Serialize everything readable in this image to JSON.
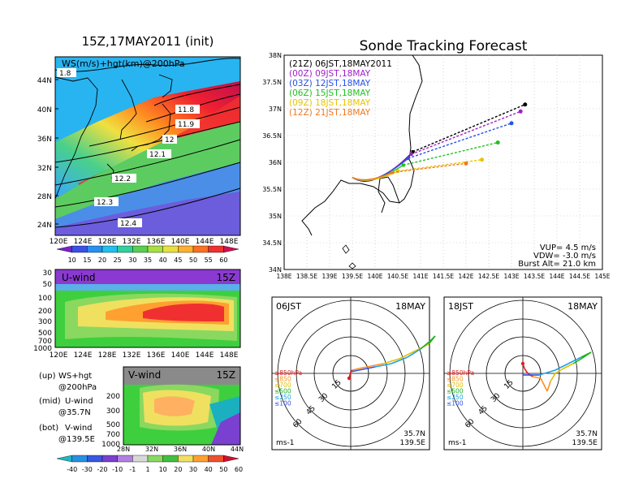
{
  "left": {
    "title": "15Z,17MAY2011 (init)",
    "map_label": "WS(m/s)+hgt(km)@200hPa",
    "lat_ticks": [
      "44N",
      "40N",
      "36N",
      "32N",
      "28N",
      "24N"
    ],
    "lon_ticks": [
      "120E",
      "124E",
      "128E",
      "132E",
      "136E",
      "140E",
      "144E",
      "148E"
    ],
    "contour_labels": [
      "1.8",
      "11.8",
      "11.9",
      "12",
      "12.1",
      "12.2",
      "12.3",
      "12.4"
    ],
    "colorbar_top_ticks": [
      "10",
      "15",
      "20",
      "25",
      "30",
      "35",
      "40",
      "45",
      "50",
      "55",
      "60"
    ],
    "uwind_label": "U-wind",
    "uwind_time": "15Z",
    "pressure_ticks": [
      "30",
      "50",
      "100",
      "200",
      "300",
      "500",
      "700",
      "1000"
    ],
    "vwind_label": "V-wind",
    "vwind_time": "15Z",
    "vwind_pressure_ticks": [
      "200",
      "300",
      "500",
      "700",
      "1000"
    ],
    "lat_axis_ticks": [
      "28N",
      "32N",
      "36N",
      "40N",
      "44N"
    ],
    "legend": [
      {
        "key": "(up)",
        "line1": "WS+hgt",
        "line2": "@200hPa"
      },
      {
        "key": "(mid)",
        "line1": "U-wind",
        "line2": "@35.7N"
      },
      {
        "key": "(bot)",
        "line1": "V-wind",
        "line2": "@139.5E"
      }
    ],
    "colorbar_bottom_ticks": [
      "-40",
      "-30",
      "-20",
      "-10",
      "-1",
      "1",
      "10",
      "20",
      "30",
      "40",
      "50",
      "60"
    ]
  },
  "right": {
    "title": "Sonde Tracking Forecast",
    "traj_lat_ticks": [
      "38N",
      "37.5N",
      "37N",
      "36.5N",
      "36N",
      "35.5N",
      "35N",
      "34.5N",
      "34N"
    ],
    "traj_lon_ticks": [
      "138E",
      "138.5E",
      "139E",
      "139.5E",
      "140E",
      "140.5E",
      "141E",
      "141.5E",
      "142E",
      "142.5E",
      "143E",
      "143.5E",
      "144E",
      "144.5E",
      "145E"
    ],
    "vup": "VUP= 4.5 m/s",
    "vdw": "VDW= -3.0 m/s",
    "burst": "Burst Alt= 21.0 km",
    "hodo_left": {
      "time": "06JST",
      "date": "18MAY",
      "loc1": "35.7N",
      "loc2": "139.5E",
      "unit": "ms-1"
    },
    "hodo_right": {
      "time": "18JST",
      "date": "18MAY",
      "loc1": "35.7N",
      "loc2": "139.5E",
      "unit": "ms-1"
    },
    "ring_labels": [
      "15",
      "30",
      "45",
      "60"
    ],
    "level_labels": [
      "≥850hPa",
      "≤850",
      "≤700",
      "≤500",
      "≤250",
      "≤100"
    ]
  },
  "chart_data": [
    {
      "type": "scatter",
      "title": "Sonde Tracking Forecast",
      "xlim": [
        138.0,
        145.0
      ],
      "ylim": [
        34.0,
        38.0
      ],
      "launch_point": {
        "lon": 139.5,
        "lat": 35.72
      },
      "series": [
        {
          "name": "(21Z) 06JST,18MAY2011",
          "color": "#000000",
          "end": {
            "lon": 143.3,
            "lat": 37.08
          }
        },
        {
          "name": "(00Z) 09JST,18MAY",
          "color": "#a020c8",
          "end": {
            "lon": 143.2,
            "lat": 36.95
          }
        },
        {
          "name": "(03Z) 12JST,18MAY",
          "color": "#2850e8",
          "end": {
            "lon": 143.0,
            "lat": 36.73
          }
        },
        {
          "name": "(06Z) 15JST,18MAY",
          "color": "#20c020",
          "end": {
            "lon": 142.7,
            "lat": 36.37
          }
        },
        {
          "name": "(09Z) 18JST,18MAY",
          "color": "#e8c400",
          "end": {
            "lon": 142.35,
            "lat": 36.05
          }
        },
        {
          "name": "(12Z) 21JST,18MAY",
          "color": "#f07820",
          "end": {
            "lon": 142.0,
            "lat": 35.98
          }
        }
      ]
    },
    {
      "type": "line",
      "title": "Hodograph 06JST 18MAY",
      "ring_values": [
        15,
        30,
        45,
        60
      ]
    },
    {
      "type": "line",
      "title": "Hodograph 18JST 18MAY",
      "ring_values": [
        15,
        30,
        45,
        60
      ]
    }
  ]
}
